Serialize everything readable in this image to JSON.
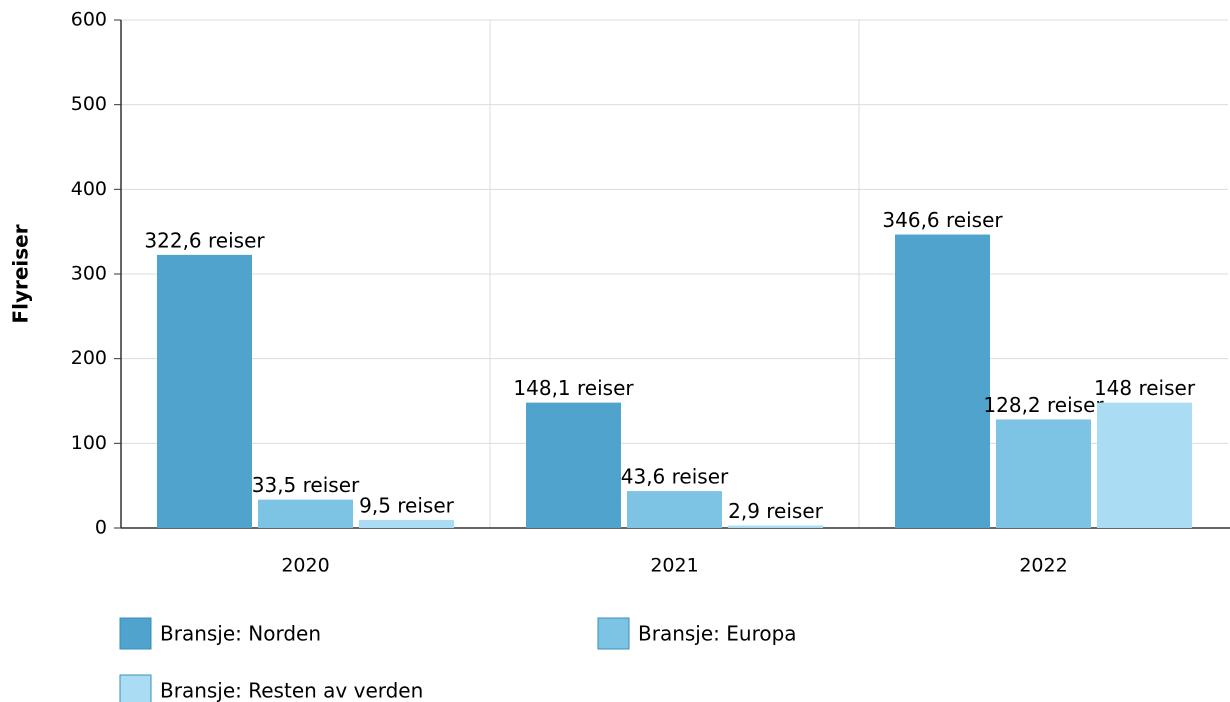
{
  "chart_data": {
    "type": "bar",
    "ylabel": "Flyreiser",
    "categories": [
      "2020",
      "2021",
      "2022"
    ],
    "series": [
      {
        "name": "Bransje: Norden",
        "color": "#4fa3cc",
        "values": [
          322.6,
          148.1,
          346.6
        ],
        "value_labels": [
          "322,6 reiser",
          "148,1 reiser",
          "346,6 reiser"
        ]
      },
      {
        "name": "Bransje: Europa",
        "color": "#7dc3e3",
        "values": [
          33.5,
          43.6,
          128.2
        ],
        "value_labels": [
          "33,5 reiser",
          "43,6 reiser",
          "128,2 reiser"
        ]
      },
      {
        "name": "Bransje: Resten av verden",
        "color": "#aadcf4",
        "values": [
          9.5,
          2.9,
          148
        ],
        "value_labels": [
          "9,5 reiser",
          "2,9 reiser",
          "148 reiser"
        ]
      }
    ],
    "ylim": [
      0,
      600
    ],
    "yticks": [
      0,
      100,
      200,
      300,
      400,
      500,
      600
    ],
    "grid": true,
    "legend": "bottom"
  }
}
